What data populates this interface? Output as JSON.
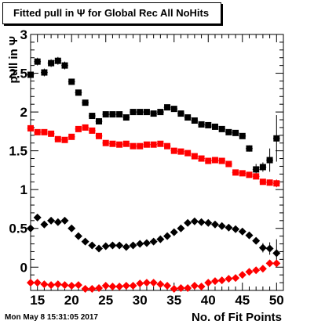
{
  "chart_data": {
    "type": "scatter",
    "title": "Fitted pull in  Ψ  for Global Rec All NoHits",
    "xlabel": "No. of Fit Points",
    "ylabel": "pull in  Ψ",
    "xlim": [
      14,
      51
    ],
    "ylim": [
      -0.3,
      3
    ],
    "x_ticks": [
      15,
      20,
      25,
      30,
      35,
      40,
      45,
      50
    ],
    "y_ticks": [
      0,
      0.5,
      1,
      1.5,
      2,
      2.5,
      3
    ],
    "x_tick_labels": [
      "15",
      "20",
      "25",
      "30",
      "35",
      "40",
      "45",
      "50"
    ],
    "y_tick_labels": [
      "0",
      "0.5",
      "1",
      "1.5",
      "2",
      "2.5",
      "3"
    ],
    "grid": false,
    "series": [
      {
        "marker": "square",
        "color": "#000000",
        "x": [
          14,
          15,
          16,
          17,
          18,
          19,
          20,
          21,
          22,
          23,
          24,
          25,
          26,
          27,
          28,
          29,
          30,
          31,
          32,
          33,
          34,
          35,
          36,
          37,
          38,
          39,
          40,
          41,
          42,
          43,
          44,
          45,
          46,
          47,
          48,
          49,
          50
        ],
        "y": [
          2.48,
          2.65,
          2.51,
          2.63,
          2.66,
          2.6,
          2.39,
          2.25,
          2.12,
          1.95,
          1.88,
          1.97,
          1.97,
          1.97,
          1.93,
          2.0,
          2.0,
          2.0,
          1.98,
          2.0,
          2.06,
          2.04,
          1.98,
          1.93,
          1.89,
          1.84,
          1.83,
          1.81,
          1.78,
          1.74,
          1.73,
          1.69,
          1.53,
          1.26,
          1.29,
          1.38,
          1.66
        ],
        "yerr": [
          0.05,
          0.05,
          0.05,
          0.05,
          0.05,
          0.05,
          0.04,
          0.03,
          0.03,
          0.03,
          0.03,
          0.03,
          0.03,
          0.03,
          0.03,
          0.03,
          0.03,
          0.03,
          0.03,
          0.03,
          0.03,
          0.03,
          0.03,
          0.03,
          0.03,
          0.03,
          0.03,
          0.03,
          0.03,
          0.03,
          0.03,
          0.03,
          0.04,
          0.07,
          0.06,
          0.15,
          0.3
        ]
      },
      {
        "marker": "square",
        "color": "#ff0000",
        "x": [
          14,
          15,
          16,
          17,
          18,
          19,
          20,
          21,
          22,
          23,
          24,
          25,
          26,
          27,
          28,
          29,
          30,
          31,
          32,
          33,
          34,
          35,
          36,
          37,
          38,
          39,
          40,
          41,
          42,
          43,
          44,
          45,
          46,
          47,
          48,
          49,
          50
        ],
        "y": [
          1.79,
          1.74,
          1.74,
          1.72,
          1.65,
          1.64,
          1.68,
          1.78,
          1.8,
          1.76,
          1.69,
          1.6,
          1.59,
          1.58,
          1.59,
          1.56,
          1.56,
          1.58,
          1.58,
          1.59,
          1.56,
          1.5,
          1.49,
          1.47,
          1.43,
          1.4,
          1.37,
          1.38,
          1.37,
          1.33,
          1.22,
          1.21,
          1.19,
          1.17,
          1.1,
          1.09,
          1.08
        ],
        "yerr": [
          0.02,
          0.02,
          0.02,
          0.02,
          0.02,
          0.02,
          0.02,
          0.02,
          0.02,
          0.02,
          0.02,
          0.02,
          0.02,
          0.02,
          0.02,
          0.02,
          0.02,
          0.02,
          0.02,
          0.02,
          0.02,
          0.02,
          0.02,
          0.02,
          0.02,
          0.02,
          0.02,
          0.02,
          0.02,
          0.02,
          0.02,
          0.02,
          0.02,
          0.03,
          0.03,
          0.04,
          0.05
        ]
      },
      {
        "marker": "diamond",
        "color": "#000000",
        "x": [
          14,
          15,
          16,
          17,
          18,
          19,
          20,
          21,
          22,
          23,
          24,
          25,
          26,
          27,
          28,
          29,
          30,
          31,
          32,
          33,
          34,
          35,
          36,
          37,
          38,
          39,
          40,
          41,
          42,
          43,
          44,
          45,
          46,
          47,
          48,
          49,
          50
        ],
        "y": [
          0.5,
          0.64,
          0.55,
          0.6,
          0.58,
          0.6,
          0.5,
          0.4,
          0.33,
          0.28,
          0.24,
          0.27,
          0.28,
          0.28,
          0.26,
          0.28,
          0.3,
          0.31,
          0.33,
          0.36,
          0.4,
          0.45,
          0.5,
          0.57,
          0.59,
          0.58,
          0.57,
          0.55,
          0.53,
          0.51,
          0.49,
          0.46,
          0.41,
          0.34,
          0.25,
          0.24,
          0.18
        ],
        "yerr": [
          0.04,
          0.04,
          0.03,
          0.03,
          0.03,
          0.03,
          0.03,
          0.03,
          0.03,
          0.03,
          0.03,
          0.03,
          0.03,
          0.03,
          0.03,
          0.03,
          0.03,
          0.03,
          0.03,
          0.03,
          0.03,
          0.03,
          0.03,
          0.03,
          0.03,
          0.03,
          0.03,
          0.03,
          0.03,
          0.03,
          0.03,
          0.03,
          0.03,
          0.04,
          0.06,
          0.08,
          0.18
        ]
      },
      {
        "marker": "diamond",
        "color": "#ff0000",
        "x": [
          14,
          15,
          16,
          17,
          18,
          19,
          20,
          21,
          22,
          23,
          24,
          25,
          26,
          27,
          28,
          29,
          30,
          31,
          32,
          33,
          34,
          35,
          36,
          37,
          38,
          39,
          40,
          41,
          42,
          43,
          44,
          45,
          46,
          47,
          48,
          49,
          50
        ],
        "y": [
          -0.2,
          -0.2,
          -0.22,
          -0.23,
          -0.22,
          -0.23,
          -0.24,
          -0.23,
          -0.28,
          -0.28,
          -0.27,
          -0.24,
          -0.25,
          -0.25,
          -0.24,
          -0.24,
          -0.21,
          -0.2,
          -0.2,
          -0.22,
          -0.24,
          -0.28,
          -0.27,
          -0.27,
          -0.24,
          -0.25,
          -0.2,
          -0.18,
          -0.17,
          -0.15,
          -0.14,
          -0.1,
          -0.06,
          -0.04,
          -0.02,
          0.05,
          0.05
        ],
        "yerr": [
          0.02,
          0.02,
          0.02,
          0.02,
          0.02,
          0.02,
          0.02,
          0.02,
          0.02,
          0.02,
          0.02,
          0.02,
          0.02,
          0.02,
          0.02,
          0.02,
          0.02,
          0.02,
          0.02,
          0.02,
          0.02,
          0.02,
          0.02,
          0.02,
          0.02,
          0.02,
          0.02,
          0.02,
          0.02,
          0.02,
          0.02,
          0.02,
          0.02,
          0.02,
          0.02,
          0.03,
          0.04
        ]
      }
    ]
  },
  "footer": {
    "timestamp": "Mon May  8 15:31:05 2017"
  }
}
